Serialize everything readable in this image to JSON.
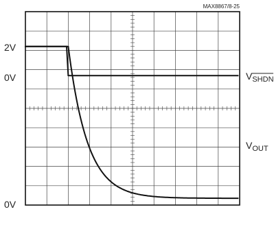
{
  "figure_id": "MAX8867/8-25",
  "chart_data": {
    "type": "line",
    "grid": true,
    "grid_divisions": {
      "x": 10,
      "y": 10
    },
    "series": [
      {
        "name_main": "V",
        "name_sub": "SHDN",
        "name_overline": true,
        "level_labels": [
          "2V",
          "0V"
        ],
        "high_level": 2,
        "low_level": 0,
        "step_at_div": 2.0
      },
      {
        "name_main": "V",
        "name_sub": "OUT",
        "name_overline": false,
        "level_labels": [
          "0V"
        ],
        "initial_div_from_bottom": 8.2,
        "final_div_from_bottom": 0.35,
        "decay_start_div": 2.0,
        "decay_tau_div": 0.9
      }
    ]
  }
}
